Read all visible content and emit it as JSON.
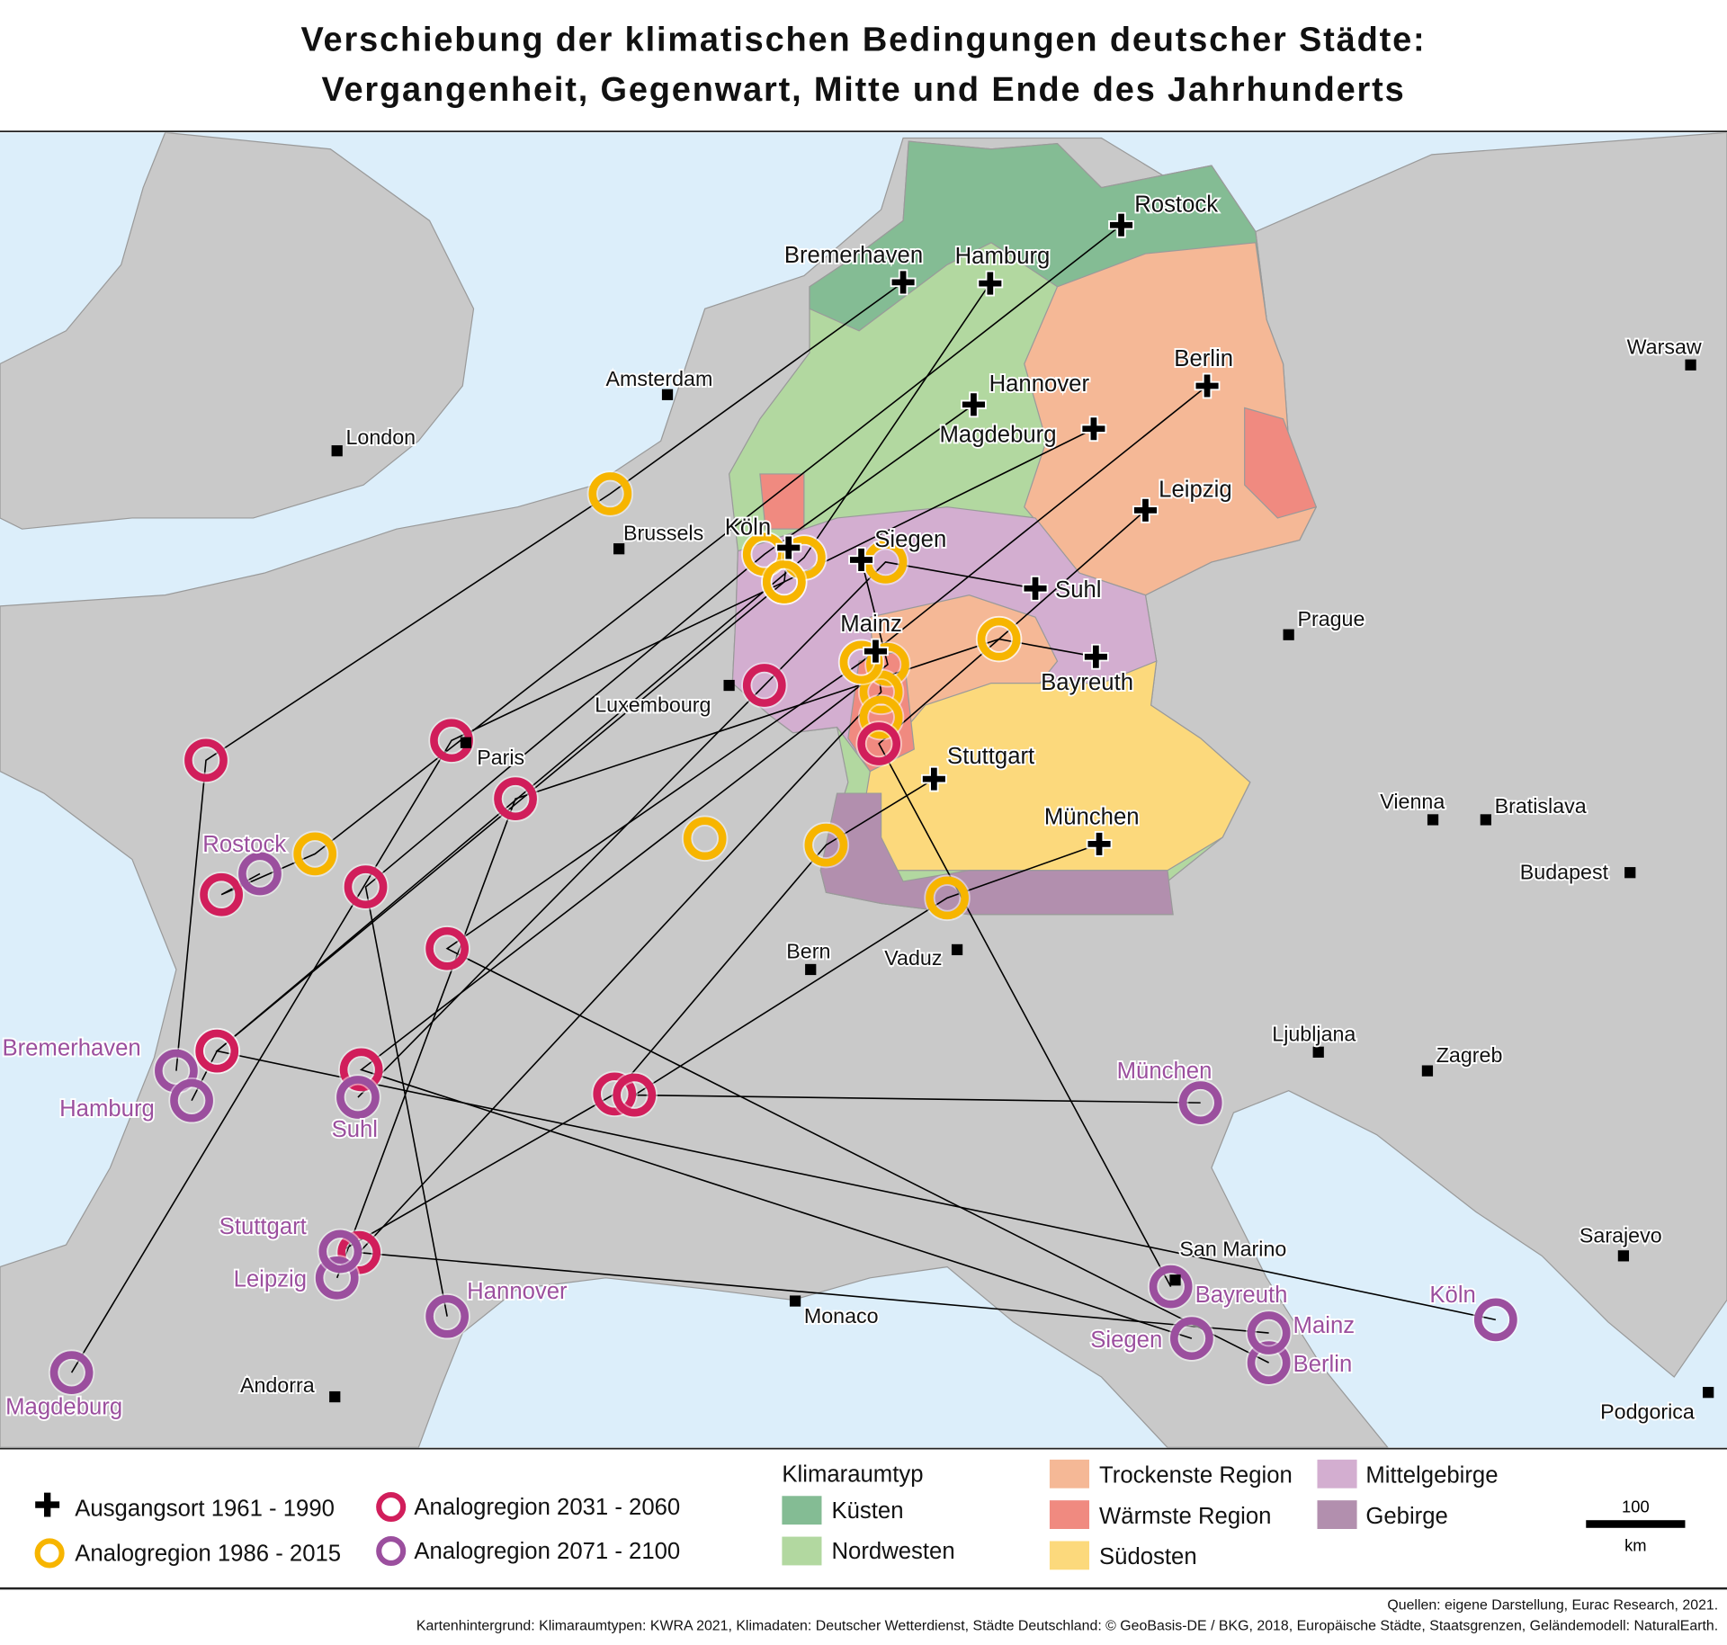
{
  "title": {
    "line1": "Verschiebung der klimatischen Bedingungen deutscher Städte:",
    "line2": "Vergangenheit, Gegenwart, Mitte und Ende des Jahrhunderts"
  },
  "colors": {
    "sea": "#dceefa",
    "land": "#c9c9c9",
    "ausgangsort": "#000000",
    "analog_1986_2015": "#f7b500",
    "analog_2031_2060": "#d11e5b",
    "analog_2071_2100": "#9b4f9e",
    "kuesten": "#84bc94",
    "nordwesten": "#b2d8a0",
    "trockenste": "#f5b896",
    "waermste": "#f08a80",
    "suedosten": "#fcd97c",
    "mittelgebirge": "#d3aed0",
    "gebirge": "#b28fae"
  },
  "german_cities": [
    "Rostock",
    "Bremerhaven",
    "Hamburg",
    "Hannover",
    "Berlin",
    "Magdeburg",
    "Leipzig",
    "Köln",
    "Siegen",
    "Suhl",
    "Mainz",
    "Bayreuth",
    "Stuttgart",
    "München"
  ],
  "analog_2071_labels": [
    "Rostock",
    "Bremerhaven",
    "Hamburg",
    "Suhl",
    "München",
    "Stuttgart",
    "Leipzig",
    "Hannover",
    "Magdeburg",
    "Bayreuth",
    "Siegen",
    "Mainz",
    "Berlin",
    "Köln"
  ],
  "capitals": [
    "London",
    "Amsterdam",
    "Brussels",
    "Luxembourg",
    "Paris",
    "Bern",
    "Vaduz",
    "Prague",
    "Vienna",
    "Bratislava",
    "Budapest",
    "Warsaw",
    "Ljubljana",
    "Zagreb",
    "Sarajevo",
    "Podgorica",
    "San Marino",
    "Monaco",
    "Andorra"
  ],
  "legend": {
    "ausgangsort": "Ausgangsort  1961 - 1990",
    "analog_1986_2015": "Analogregion 1986 - 2015",
    "analog_2031_2060": "Analogregion 2031 - 2060",
    "analog_2071_2100": "Analogregion 2071 - 2100",
    "klimaraumtyp_title": "Klimaraumtyp",
    "kuesten": "Küsten",
    "nordwesten": "Nordwesten",
    "trockenste": "Trockenste Region",
    "waermste": "Wärmste Region",
    "suedosten": "Südosten",
    "mittelgebirge": "Mittelgebirge",
    "gebirge": "Gebirge",
    "scale_value": "100",
    "scale_unit": "km"
  },
  "footer": {
    "sources": "Quellen: eigene Darstellung, Eurac Research, 2021.",
    "background": "Kartenhintergrund: Klimaraumtypen: KWRA 2021, Klimadaten: Deutscher Wetterdienst, Städte Deutschland: © GeoBasis-DE / BKG, 2018, Europäische Städte, Staatsgrenzen, Geländemodell: NaturalEarth."
  }
}
